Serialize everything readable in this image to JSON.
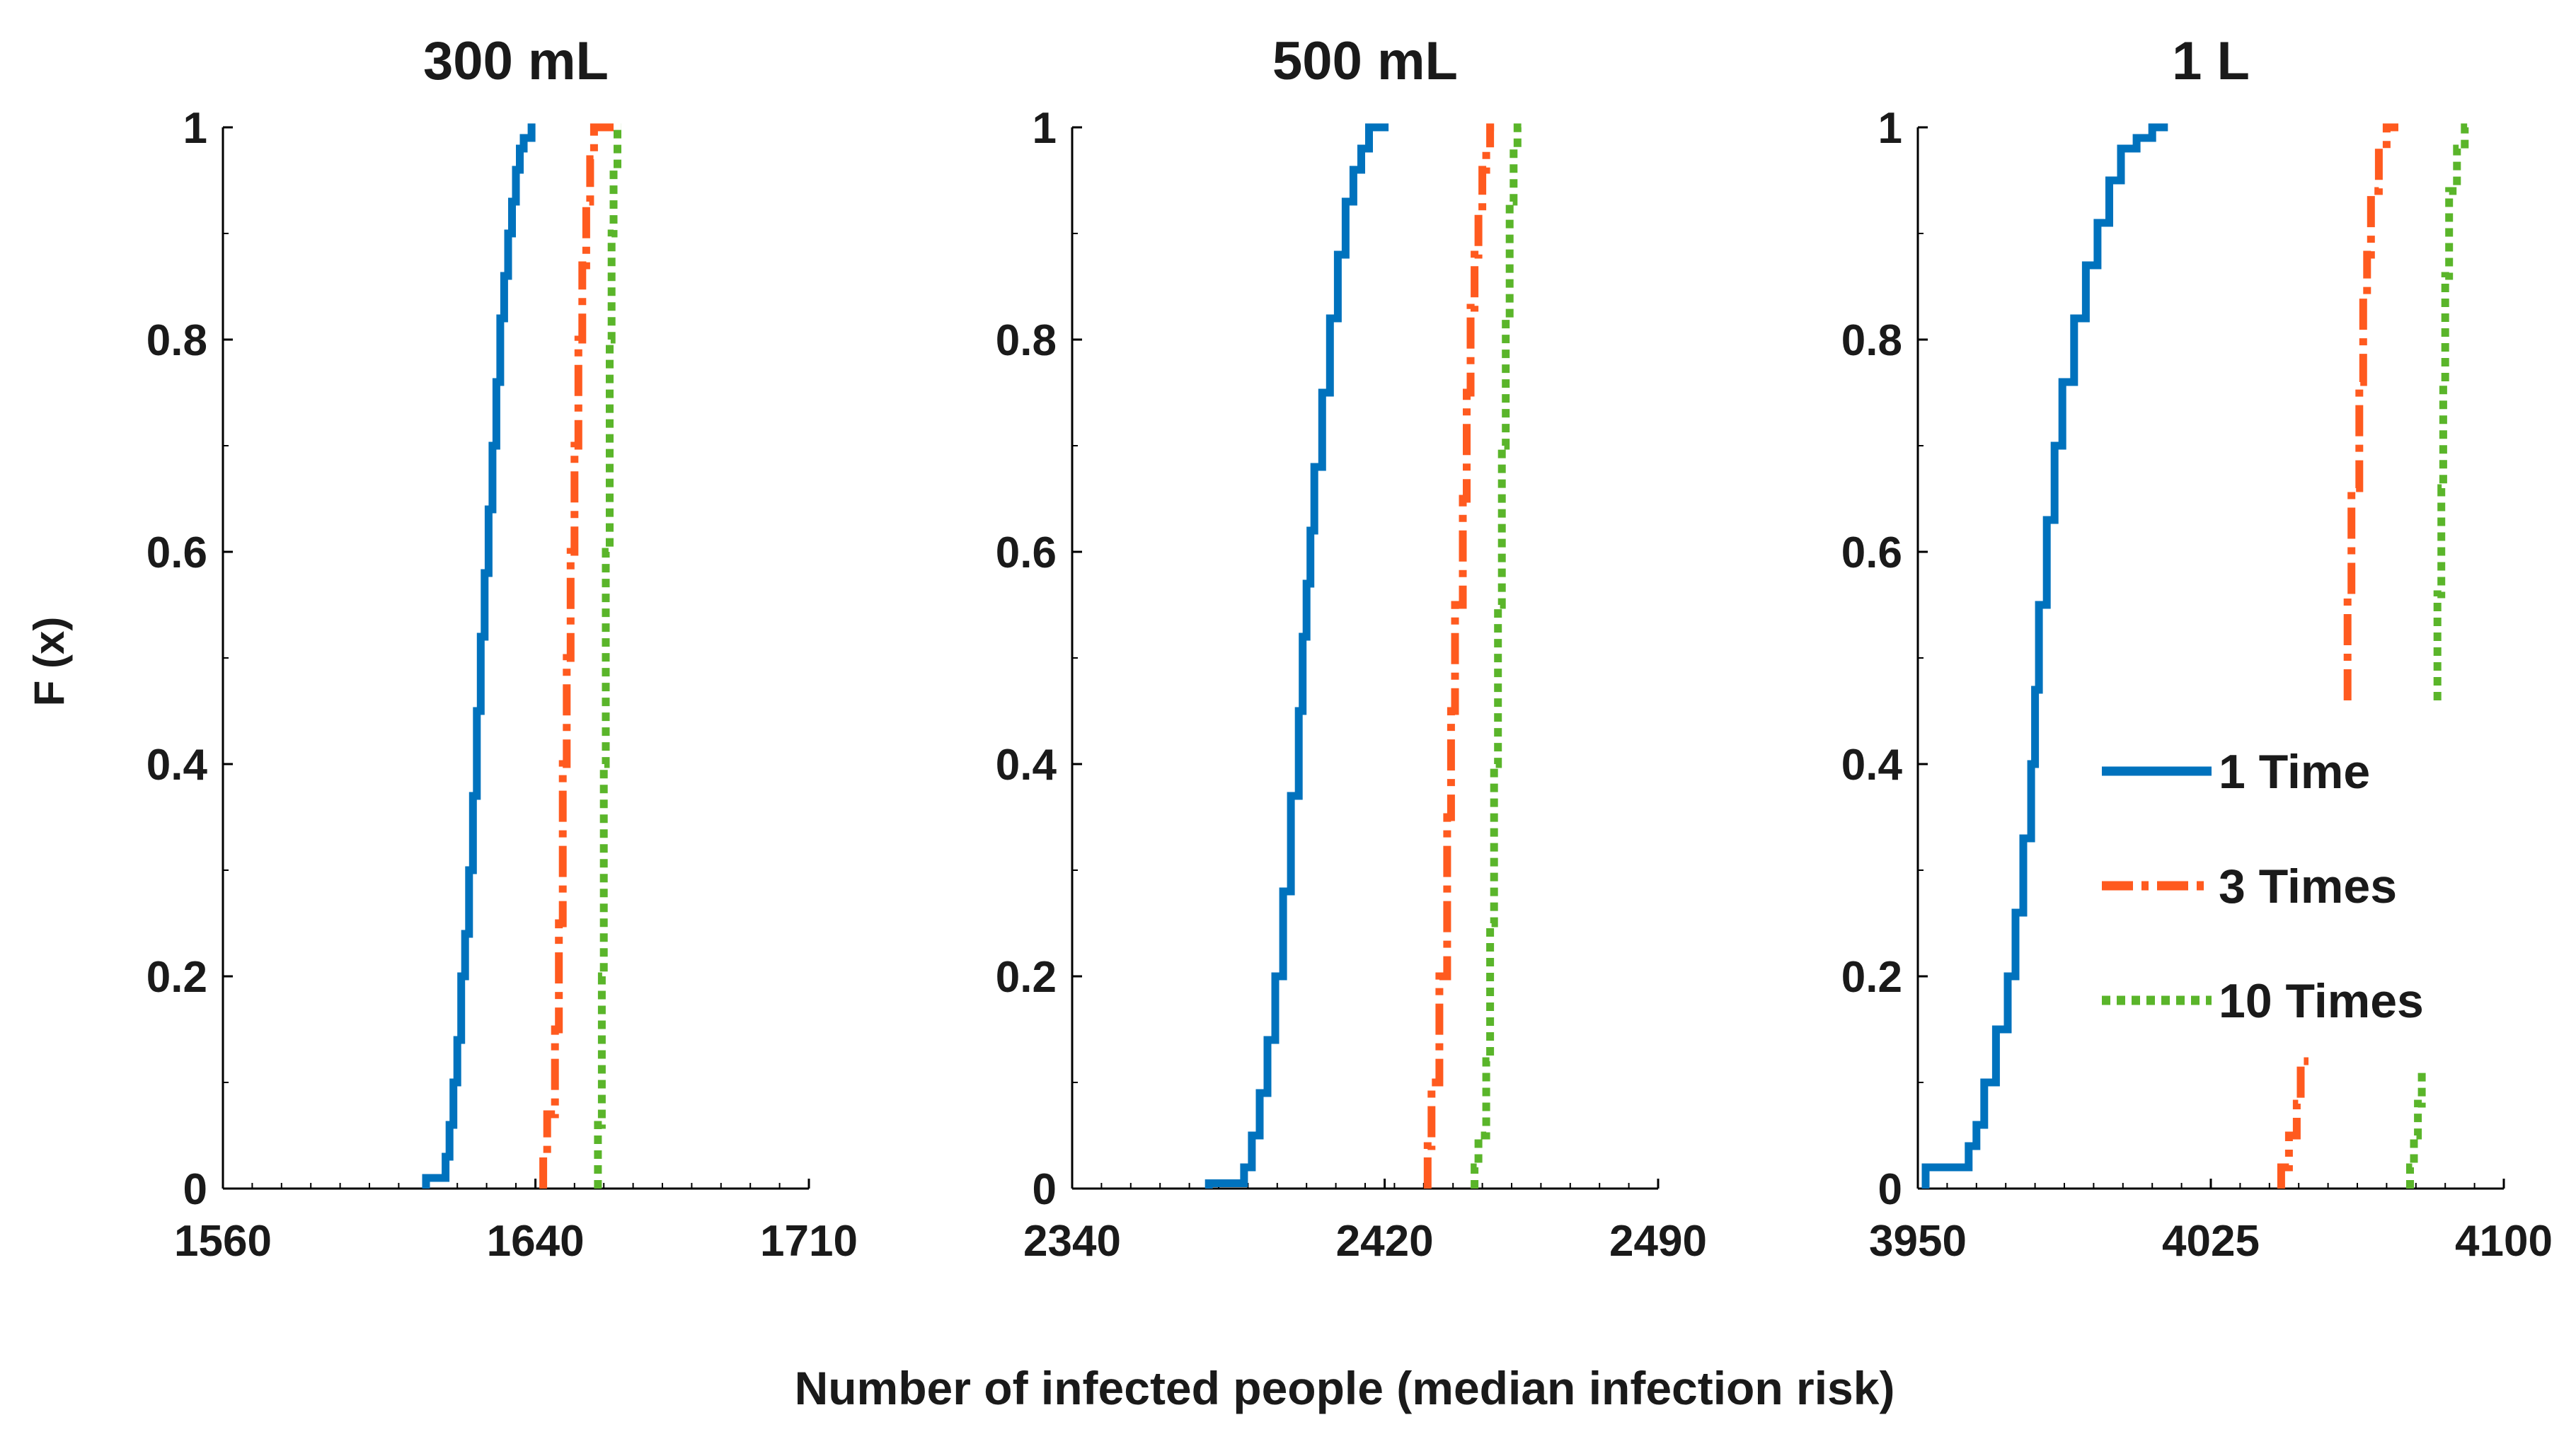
{
  "figure": {
    "ylabel": "F (x)",
    "xlabel": "Number of infected people (median infection risk)"
  },
  "series_styles": [
    {
      "name": "1 Time",
      "color": "#0072BD",
      "dash": "solid"
    },
    {
      "name": "3 Times",
      "color": "#FF5A1F",
      "dash": "dashdot"
    },
    {
      "name": "10 Times",
      "color": "#5AB52A",
      "dash": "dotted"
    }
  ],
  "chart_data": [
    {
      "type": "line",
      "title": "300 mL",
      "xlim": [
        1560,
        1710
      ],
      "ylim": [
        0,
        1
      ],
      "xticks": [
        1560,
        1640,
        1710
      ],
      "yticks": [
        0,
        0.2,
        0.4,
        0.6,
        0.8,
        1
      ],
      "ytick_labels": [
        "0",
        "0.2",
        "0.4",
        "0.6",
        "0.8",
        "1"
      ],
      "legend": null,
      "series": [
        {
          "name": "1 Time",
          "points": [
            [
              1612,
              0.0
            ],
            [
              1612,
              0.01
            ],
            [
              1617,
              0.01
            ],
            [
              1618,
              0.03
            ],
            [
              1619,
              0.06
            ],
            [
              1620,
              0.1
            ],
            [
              1621,
              0.14
            ],
            [
              1622,
              0.2
            ],
            [
              1623,
              0.24
            ],
            [
              1624,
              0.3
            ],
            [
              1625,
              0.37
            ],
            [
              1626,
              0.45
            ],
            [
              1627,
              0.52
            ],
            [
              1628,
              0.58
            ],
            [
              1629,
              0.64
            ],
            [
              1630,
              0.7
            ],
            [
              1631,
              0.76
            ],
            [
              1632,
              0.82
            ],
            [
              1633,
              0.86
            ],
            [
              1634,
              0.9
            ],
            [
              1635,
              0.93
            ],
            [
              1636,
              0.96
            ],
            [
              1637,
              0.98
            ],
            [
              1639,
              0.99
            ],
            [
              1640,
              1.0
            ]
          ]
        },
        {
          "name": "3 Times",
          "points": [
            [
              1642,
              0.0
            ],
            [
              1643,
              0.03
            ],
            [
              1645,
              0.07
            ],
            [
              1646,
              0.15
            ],
            [
              1647,
              0.25
            ],
            [
              1648,
              0.4
            ],
            [
              1649,
              0.5
            ],
            [
              1650,
              0.6
            ],
            [
              1651,
              0.7
            ],
            [
              1652,
              0.8
            ],
            [
              1653,
              0.87
            ],
            [
              1654,
              0.93
            ],
            [
              1655,
              0.97
            ],
            [
              1656,
              1.0
            ],
            [
              1660,
              1.0
            ]
          ]
        },
        {
          "name": "10 Times",
          "points": [
            [
              1656,
              0.0
            ],
            [
              1657,
              0.06
            ],
            [
              1657.5,
              0.2
            ],
            [
              1658,
              0.4
            ],
            [
              1659,
              0.6
            ],
            [
              1659.5,
              0.8
            ],
            [
              1660,
              0.9
            ],
            [
              1661,
              0.96
            ],
            [
              1662,
              1.0
            ]
          ]
        }
      ]
    },
    {
      "type": "line",
      "title": "500 mL",
      "xlim": [
        2340,
        2490
      ],
      "ylim": [
        0,
        1
      ],
      "xticks": [
        2340,
        2420,
        2490
      ],
      "yticks": [
        0,
        0.2,
        0.4,
        0.6,
        0.8,
        1
      ],
      "ytick_labels": [
        "0",
        "0.2",
        "0.4",
        "0.6",
        "0.8",
        "1"
      ],
      "legend": null,
      "series": [
        {
          "name": "1 Time",
          "points": [
            [
              2375,
              0.0
            ],
            [
              2375,
              0.005
            ],
            [
              2384,
              0.005
            ],
            [
              2386,
              0.02
            ],
            [
              2388,
              0.05
            ],
            [
              2390,
              0.09
            ],
            [
              2392,
              0.14
            ],
            [
              2394,
              0.2
            ],
            [
              2396,
              0.28
            ],
            [
              2398,
              0.37
            ],
            [
              2399,
              0.45
            ],
            [
              2400,
              0.52
            ],
            [
              2401,
              0.57
            ],
            [
              2402,
              0.62
            ],
            [
              2404,
              0.68
            ],
            [
              2406,
              0.75
            ],
            [
              2408,
              0.82
            ],
            [
              2410,
              0.88
            ],
            [
              2412,
              0.93
            ],
            [
              2414,
              0.96
            ],
            [
              2416,
              0.98
            ],
            [
              2418,
              1.0
            ],
            [
              2421,
              1.0
            ]
          ]
        },
        {
          "name": "3 Times",
          "points": [
            [
              2431,
              0.0
            ],
            [
              2432,
              0.04
            ],
            [
              2434,
              0.1
            ],
            [
              2436,
              0.2
            ],
            [
              2437,
              0.35
            ],
            [
              2438,
              0.45
            ],
            [
              2440,
              0.55
            ],
            [
              2441,
              0.65
            ],
            [
              2442,
              0.75
            ],
            [
              2443,
              0.83
            ],
            [
              2444,
              0.88
            ],
            [
              2445,
              0.92
            ],
            [
              2446,
              0.96
            ],
            [
              2447,
              0.98
            ],
            [
              2448,
              1.0
            ]
          ]
        },
        {
          "name": "10 Times",
          "points": [
            [
              2443,
              0.0
            ],
            [
              2444,
              0.02
            ],
            [
              2446,
              0.05
            ],
            [
              2447,
              0.12
            ],
            [
              2448,
              0.25
            ],
            [
              2449,
              0.4
            ],
            [
              2450,
              0.55
            ],
            [
              2451,
              0.7
            ],
            [
              2452,
              0.82
            ],
            [
              2453,
              0.93
            ],
            [
              2454,
              0.98
            ],
            [
              2456,
              1.0
            ]
          ]
        }
      ]
    },
    {
      "type": "line",
      "title": "1 L",
      "xlim": [
        3950,
        4100
      ],
      "ylim": [
        0,
        1
      ],
      "xticks": [
        3950,
        4025,
        4100
      ],
      "yticks": [
        0,
        0.2,
        0.4,
        0.6,
        0.8,
        1
      ],
      "ytick_labels": [
        "0",
        "0.2",
        "0.4",
        "0.6",
        "0.8",
        "1"
      ],
      "legend": "center-right",
      "series": [
        {
          "name": "1 Time",
          "segments": [
            [
              [
                3952,
                0.0
              ],
              [
                3952,
                0.01
              ],
              [
                3958,
                0.02
              ],
              [
                3963,
                0.02
              ],
              [
                3965,
                0.04
              ],
              [
                3967,
                0.06
              ],
              [
                3970,
                0.1
              ],
              [
                3973,
                0.15
              ],
              [
                3975,
                0.2
              ],
              [
                3977,
                0.26
              ],
              [
                3979,
                0.33
              ],
              [
                3980,
                0.4
              ],
              [
                3981,
                0.47
              ],
              [
                3983,
                0.55
              ],
              [
                3985,
                0.63
              ],
              [
                3987,
                0.7
              ],
              [
                3990,
                0.76
              ],
              [
                3993,
                0.82
              ],
              [
                3996,
                0.87
              ],
              [
                3999,
                0.91
              ],
              [
                4002,
                0.95
              ],
              [
                4006,
                0.98
              ],
              [
                4010,
                0.99
              ],
              [
                4014,
                1.0
              ]
            ]
          ]
        },
        {
          "name": "3 Times",
          "segments": [
            [
              [
                4043,
                0.0
              ],
              [
                4045,
                0.02
              ],
              [
                4047,
                0.05
              ],
              [
                4048,
                0.08
              ],
              [
                4050,
                0.12
              ]
            ],
            [
              [
                4060,
                0.46
              ],
              [
                4061,
                0.56
              ],
              [
                4063,
                0.66
              ],
              [
                4064,
                0.76
              ],
              [
                4065,
                0.84
              ],
              [
                4066,
                0.88
              ],
              [
                4068,
                0.94
              ],
              [
                4070,
                0.98
              ],
              [
                4073,
                1.0
              ]
            ]
          ]
        },
        {
          "name": "10 Times",
          "segments": [
            [
              [
                4076,
                0.0
              ],
              [
                4077,
                0.02
              ],
              [
                4078,
                0.05
              ],
              [
                4079,
                0.08
              ],
              [
                4080,
                0.11
              ]
            ],
            [
              [
                4083,
                0.46
              ],
              [
                4084,
                0.56
              ],
              [
                4084.5,
                0.66
              ],
              [
                4085,
                0.76
              ],
              [
                4086,
                0.86
              ],
              [
                4088,
                0.94
              ],
              [
                4090,
                0.98
              ],
              [
                4092,
                1.0
              ]
            ]
          ]
        }
      ]
    }
  ]
}
